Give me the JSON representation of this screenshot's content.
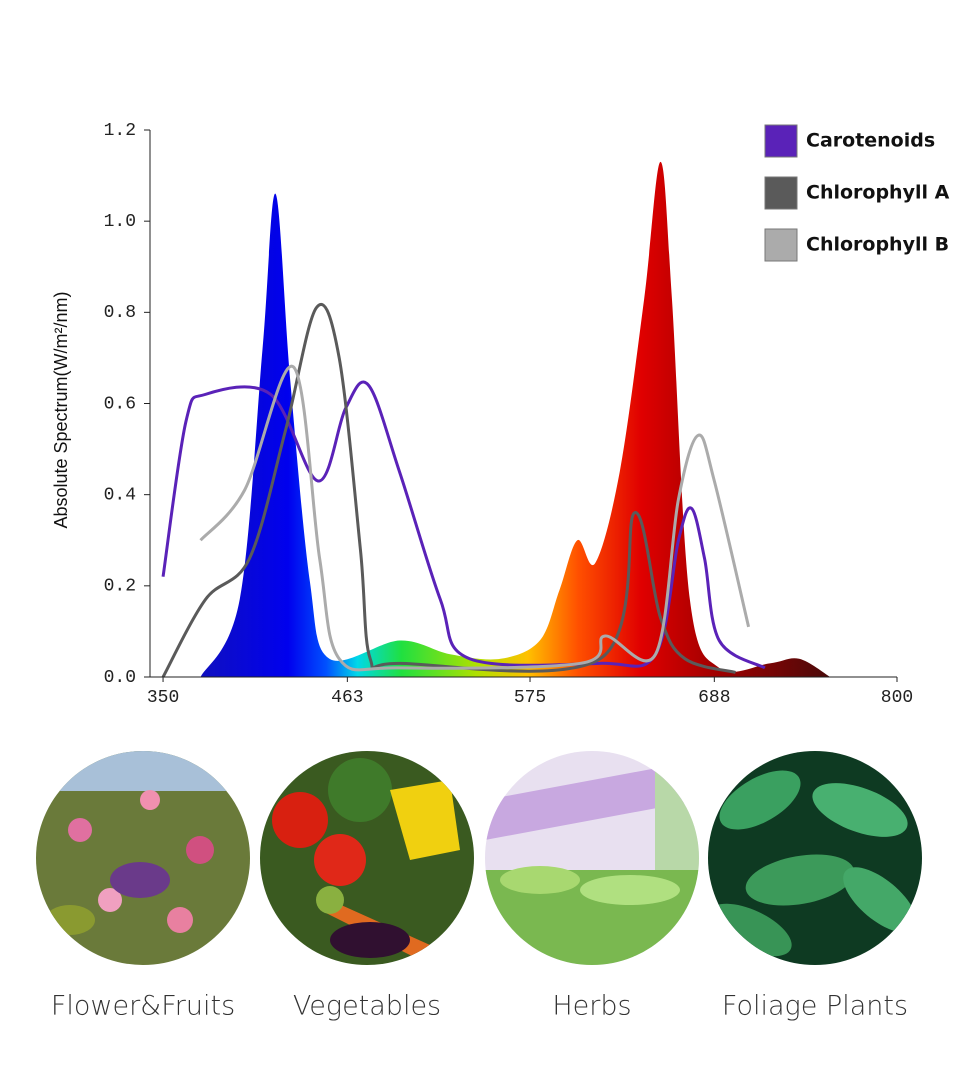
{
  "chart_data": {
    "type": "line",
    "y_label": "Absolute Spectrum(W/m²/nm)",
    "xlim": [
      342,
      800
    ],
    "xticks": [
      350,
      463,
      575,
      688,
      800
    ],
    "ylim": [
      0,
      1.2
    ],
    "yticks": [
      {
        "value": 0,
        "label": "0.0"
      },
      0.2,
      0.4,
      0.6,
      0.8,
      {
        "value": 1,
        "label": "1.0"
      },
      1.2
    ],
    "legend": "top-right",
    "series": [
      {
        "type": "area",
        "color": "spectrum",
        "x": [
          373,
          397,
          411,
          419,
          428,
          440,
          452,
          495,
          526,
          557,
          581,
          593,
          604,
          615,
          630,
          645,
          655,
          662,
          673,
          691,
          722,
          740,
          759
        ],
        "values": [
          0,
          0.17,
          0.72,
          1.06,
          0.65,
          0.21,
          0.04,
          0.08,
          0.05,
          0.04,
          0.08,
          0.19,
          0.3,
          0.25,
          0.45,
          0.83,
          1.13,
          0.83,
          0.17,
          0.02,
          0.03,
          0.04,
          0
        ]
      },
      {
        "name": "Carotenoids",
        "color": "#5a22b8",
        "x": [
          350,
          364,
          376,
          416,
          445,
          462,
          476,
          495,
          520,
          538,
          618,
          652,
          666,
          674,
          682,
          691,
          719
        ],
        "values": [
          0.22,
          0.56,
          0.62,
          0.62,
          0.43,
          0.59,
          0.64,
          0.45,
          0.17,
          0.04,
          0.03,
          0.05,
          0.3,
          0.37,
          0.26,
          0.08,
          0.02
        ]
      },
      {
        "name": "Chlorophyll A",
        "color": "#5a5a5a",
        "x": [
          350,
          376,
          403,
          425,
          444,
          458,
          471,
          477,
          495,
          618,
          639,
          655,
          670,
          701
        ],
        "values": [
          0,
          0.17,
          0.26,
          0.54,
          0.81,
          0.7,
          0.28,
          0.04,
          0.03,
          0.04,
          0.36,
          0.13,
          0.04,
          0.01
        ]
      },
      {
        "name": "Chlorophyll B",
        "color": "#ababab",
        "x": [
          373,
          400,
          430,
          446,
          458,
          495,
          606,
          621,
          652,
          666,
          678,
          688,
          709
        ],
        "values": [
          0.3,
          0.41,
          0.68,
          0.26,
          0.04,
          0.02,
          0.03,
          0.09,
          0.05,
          0.39,
          0.53,
          0.43,
          0.11
        ]
      }
    ]
  },
  "gallery": {
    "items": [
      "Flower&Fruits",
      "Vegetables",
      "Herbs",
      "Foliage Plants"
    ]
  }
}
